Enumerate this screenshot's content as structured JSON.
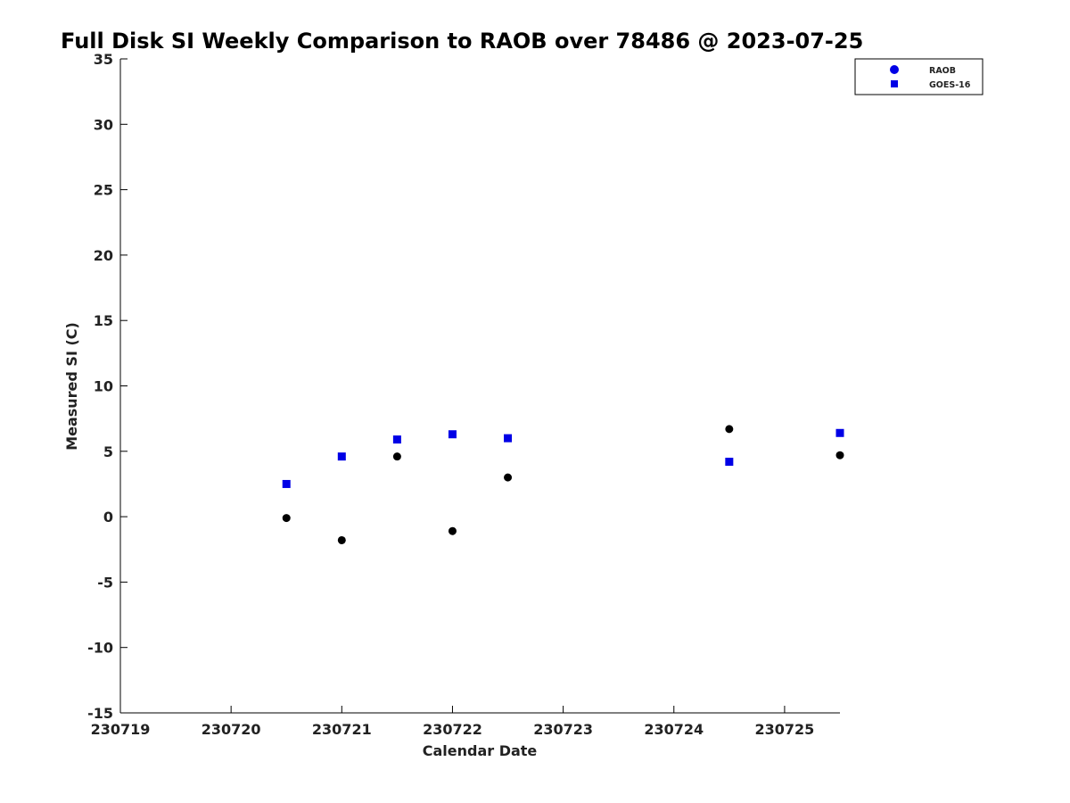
{
  "chart_data": {
    "type": "scatter",
    "title": "Full Disk SI Weekly Comparison to RAOB over 78486 @ 2023-07-25",
    "xlabel": "Calendar Date",
    "ylabel": "Measured SI (C)",
    "x_ticks": [
      "230719",
      "230720",
      "230721",
      "230722",
      "230723",
      "230724",
      "230725"
    ],
    "xlim": [
      "230719",
      "230725.5"
    ],
    "ylim": [
      -15,
      35
    ],
    "y_ticks": [
      -15,
      -10,
      -5,
      0,
      5,
      10,
      15,
      20,
      25,
      30,
      35
    ],
    "grid": false,
    "legend_position": "top-right",
    "series": [
      {
        "name": "RAOB",
        "marker": "circle",
        "color": "#000000",
        "legend_color": "#0000e6",
        "x": [
          "230720.5",
          "230721",
          "230721.5",
          "230722",
          "230722.5",
          "230724.5",
          "230725.5"
        ],
        "y": [
          -0.1,
          -1.8,
          4.6,
          -1.1,
          3.0,
          6.7,
          4.7
        ]
      },
      {
        "name": "GOES-16",
        "marker": "square",
        "color": "#0000e6",
        "x": [
          "230720.5",
          "230721",
          "230721.5",
          "230722",
          "230722.5",
          "230724.5",
          "230725.5"
        ],
        "y": [
          2.5,
          4.6,
          5.9,
          6.3,
          6.0,
          4.2,
          6.4
        ]
      }
    ]
  }
}
